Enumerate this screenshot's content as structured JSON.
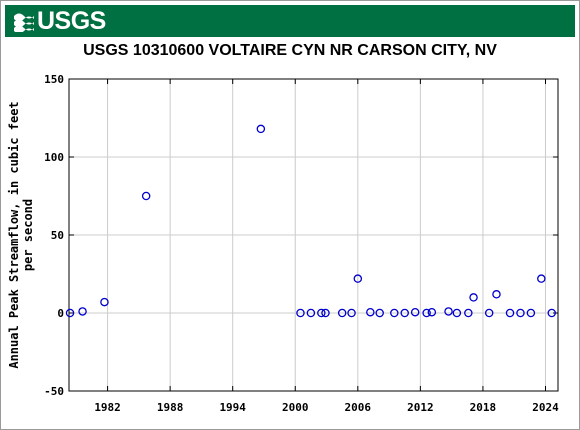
{
  "banner": {
    "logo_text": "USGS",
    "color": "#006f41"
  },
  "chart_data": {
    "type": "scatter",
    "title": "USGS 10310600 VOLTAIRE CYN NR CARSON CITY, NV",
    "xlabel": "",
    "ylabel_lines": [
      "Annual Peak Streamflow, in cubic feet",
      "per second"
    ],
    "xlim": [
      1978.3,
      2025.2
    ],
    "ylim": [
      -50,
      150
    ],
    "x_ticks": [
      1982,
      1988,
      1994,
      2000,
      2006,
      2012,
      2018,
      2024
    ],
    "y_ticks": [
      -50,
      0,
      50,
      100,
      150
    ],
    "grid": true,
    "marker_color": "#0000cc",
    "series": [
      {
        "points": [
          {
            "x": 1978.4,
            "y": 0
          },
          {
            "x": 1979.6,
            "y": 1
          },
          {
            "x": 1981.7,
            "y": 7
          },
          {
            "x": 1985.7,
            "y": 75
          },
          {
            "x": 1996.7,
            "y": 118
          },
          {
            "x": 2000.5,
            "y": 0
          },
          {
            "x": 2001.5,
            "y": 0
          },
          {
            "x": 2002.5,
            "y": 0
          },
          {
            "x": 2002.9,
            "y": 0
          },
          {
            "x": 2004.5,
            "y": 0
          },
          {
            "x": 2005.4,
            "y": 0
          },
          {
            "x": 2006.0,
            "y": 22
          },
          {
            "x": 2007.2,
            "y": 0.5
          },
          {
            "x": 2008.1,
            "y": 0
          },
          {
            "x": 2009.5,
            "y": 0
          },
          {
            "x": 2010.5,
            "y": 0
          },
          {
            "x": 2011.5,
            "y": 0.5
          },
          {
            "x": 2012.6,
            "y": 0
          },
          {
            "x": 2013.1,
            "y": 0.5
          },
          {
            "x": 2014.7,
            "y": 1
          },
          {
            "x": 2015.5,
            "y": 0
          },
          {
            "x": 2016.6,
            "y": 0
          },
          {
            "x": 2017.1,
            "y": 10
          },
          {
            "x": 2018.6,
            "y": 0
          },
          {
            "x": 2019.3,
            "y": 12
          },
          {
            "x": 2020.6,
            "y": 0
          },
          {
            "x": 2021.6,
            "y": 0
          },
          {
            "x": 2022.6,
            "y": 0
          },
          {
            "x": 2023.6,
            "y": 22
          },
          {
            "x": 2024.6,
            "y": 0
          }
        ]
      }
    ]
  }
}
